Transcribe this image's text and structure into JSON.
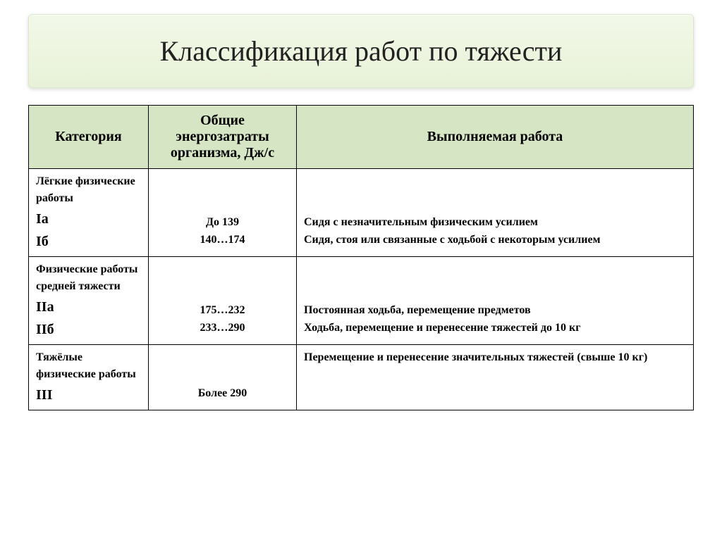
{
  "title": "Классификация работ по тяжести",
  "table": {
    "headers": {
      "category": "Категория",
      "energy": "Общие энергозатраты организма, Дж/с",
      "work": "Выполняемая работа"
    },
    "rows": [
      {
        "cat_title": "Лёгкие физические работы",
        "cat_sub1": "Iа",
        "cat_sub2": "Iб",
        "energy1": "До 139",
        "energy2": "140…174",
        "work1": "Сидя с незначительным физическим усилием",
        "work2": "Сидя, стоя или связанные с ходьбой с некоторым усилием"
      },
      {
        "cat_title": "Физические работы средней тяжести",
        "cat_sub1": "IIа",
        "cat_sub2": "IIб",
        "energy1": "175…232",
        "energy2": "233…290",
        "work1": "Постоянная ходьба, перемещение предметов",
        "work2": "Ходьба, перемещение и перенесение тяжестей до 10 кг"
      },
      {
        "cat_title": "Тяжёлые физические работы",
        "cat_sub1": "III",
        "cat_sub2": "",
        "energy1": "Более 290",
        "energy2": "",
        "work1": "Перемещение и перенесение значительных тяжестей (свыше 10 кг)",
        "work2": ""
      }
    ],
    "styling": {
      "header_bg": "#d6e5c3",
      "border_color": "#000000",
      "title_bg_top": "#f2f8e8",
      "title_bg_bottom": "#e8f2d8",
      "title_font_size_pt": 30,
      "header_font_size_pt": 15,
      "cell_font_size_pt": 12,
      "font_family": "Times New Roman"
    }
  }
}
